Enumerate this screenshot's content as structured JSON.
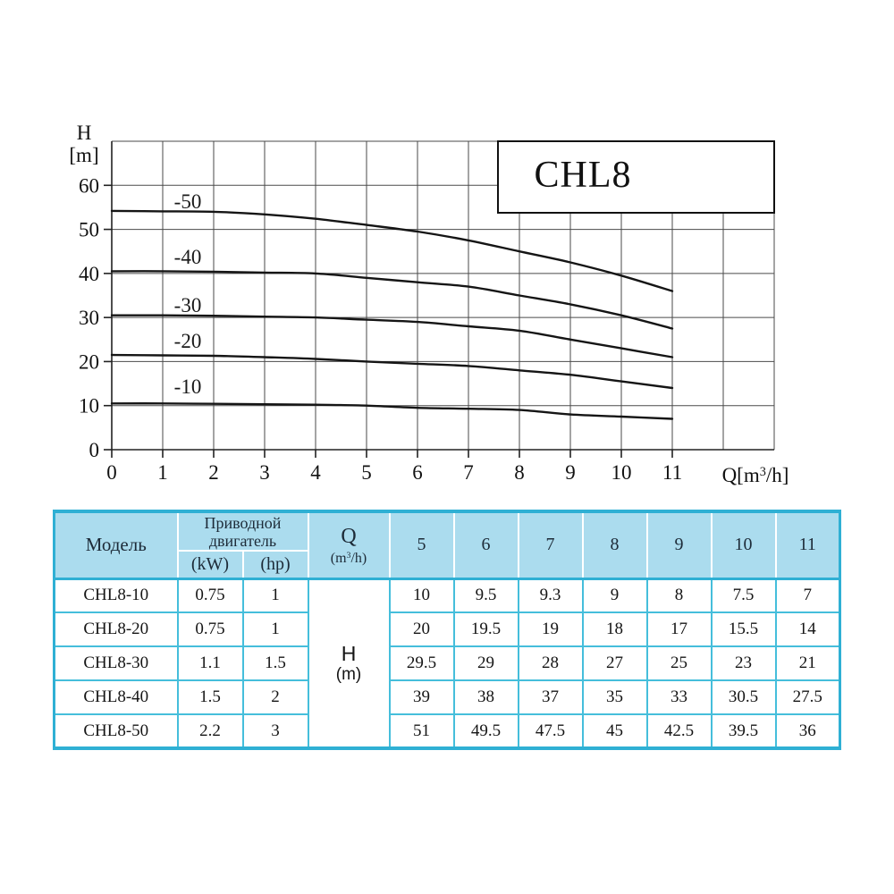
{
  "chart": {
    "y_axis_title_line1": "H",
    "y_axis_title_line2": "[m]",
    "x_axis_title": {
      "pre": "Q[m",
      "sup": "3",
      "post": "/h]"
    }
  },
  "chart_data": {
    "type": "line",
    "title": "CHL8",
    "xlabel": "Q[m³/h]",
    "ylabel": "H [m]",
    "xlim": [
      0,
      13
    ],
    "ylim": [
      0,
      70
    ],
    "x_ticks": [
      0,
      1,
      2,
      3,
      4,
      5,
      6,
      7,
      8,
      9,
      10,
      11
    ],
    "y_ticks": [
      0,
      10,
      20,
      30,
      40,
      50,
      60
    ],
    "grid": true,
    "x": [
      0,
      1,
      2,
      3,
      4,
      5,
      6,
      7,
      8,
      9,
      10,
      11
    ],
    "series": [
      {
        "name": "-10",
        "values": [
          10.5,
          10.5,
          10.4,
          10.3,
          10.2,
          10,
          9.5,
          9.3,
          9,
          8,
          7.5,
          7
        ]
      },
      {
        "name": "-20",
        "values": [
          21.5,
          21.4,
          21.3,
          21,
          20.6,
          20,
          19.5,
          19,
          18,
          17,
          15.5,
          14
        ]
      },
      {
        "name": "-30",
        "values": [
          30.5,
          30.5,
          30.4,
          30.2,
          30,
          29.5,
          29,
          28,
          27,
          25,
          23,
          21
        ]
      },
      {
        "name": "-40",
        "values": [
          40.5,
          40.5,
          40.4,
          40.2,
          40,
          39,
          38,
          37,
          35,
          33,
          30.5,
          27.5
        ]
      },
      {
        "name": "-50",
        "values": [
          54.2,
          54.1,
          54,
          53.4,
          52.4,
          51,
          49.5,
          47.5,
          45,
          42.5,
          39.5,
          36
        ]
      }
    ]
  },
  "table": {
    "headers": {
      "model": "Модель",
      "motor_group": "Приводной двигатель",
      "kw": "(kW)",
      "hp": "(hp)",
      "q_main": "Q",
      "q_sub_pre": "(m",
      "q_sub_sup": "3",
      "q_sub_post": "/h)",
      "flow_columns": [
        5,
        6,
        7,
        8,
        9,
        10,
        11
      ],
      "h_line1": "H",
      "h_line2": "(m)"
    },
    "rows": [
      {
        "model": "CHL8-10",
        "kw": "0.75",
        "hp": "1",
        "values": [
          "10",
          "9.5",
          "9.3",
          "9",
          "8",
          "7.5",
          "7"
        ]
      },
      {
        "model": "CHL8-20",
        "kw": "0.75",
        "hp": "1",
        "values": [
          "20",
          "19.5",
          "19",
          "18",
          "17",
          "15.5",
          "14"
        ]
      },
      {
        "model": "CHL8-30",
        "kw": "1.1",
        "hp": "1.5",
        "values": [
          "29.5",
          "29",
          "28",
          "27",
          "25",
          "23",
          "21"
        ]
      },
      {
        "model": "CHL8-40",
        "kw": "1.5",
        "hp": "2",
        "values": [
          "39",
          "38",
          "37",
          "35",
          "33",
          "30.5",
          "27.5"
        ]
      },
      {
        "model": "CHL8-50",
        "kw": "2.2",
        "hp": "3",
        "values": [
          "51",
          "49.5",
          "47.5",
          "45",
          "42.5",
          "39.5",
          "36"
        ]
      }
    ]
  },
  "colors": {
    "table_outer_border": "#2fb0d4",
    "table_inner_border": "#45bedb",
    "header_bg": "#abdcee",
    "header_text": "#1d2b38",
    "body_text": "#151515",
    "curve": "#151515",
    "grid_line": "#4a4a4a",
    "axis_line": "#222222",
    "background": "#ffffff"
  }
}
